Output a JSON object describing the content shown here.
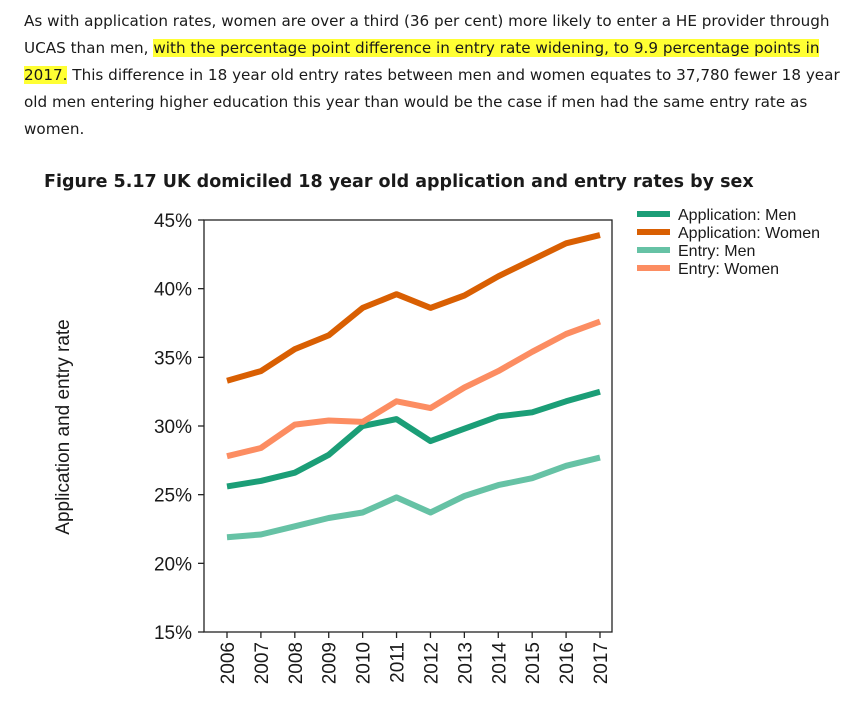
{
  "paragraph": {
    "part1": "As with application rates, women are over a third (36 per cent) more likely to enter a HE provider through UCAS than men, ",
    "highlight": "with the percentage point difference in entry rate widening, to 9.9 percentage points in 2017.",
    "part2": " This difference in 18 year old entry rates between men and women equates to 37,780 fewer 18 year old men entering higher education this year than would be the case if men had the same entry rate as women."
  },
  "colors": {
    "highlight": "#ffff33",
    "application_men": "#1b9e77",
    "application_women": "#d95f02",
    "entry_men": "#66c2a5",
    "entry_women": "#fc8d62"
  },
  "chart_data": {
    "type": "line",
    "title": "Figure 5.17 UK domiciled 18 year old application and entry rates by sex",
    "ylabel": "Application and entry rate",
    "xlabel": "",
    "ylim": [
      15,
      45
    ],
    "y_ticks": [
      15,
      20,
      25,
      30,
      35,
      40,
      45
    ],
    "y_tick_labels": [
      "15%",
      "20%",
      "25%",
      "30%",
      "35%",
      "40%",
      "45%"
    ],
    "legend_position": "top-right",
    "grid": false,
    "categories": [
      "2006",
      "2007",
      "2008",
      "2009",
      "2010",
      "2011",
      "2012",
      "2013",
      "2014",
      "2015",
      "2016",
      "2017"
    ],
    "series": [
      {
        "name": "Application: Men",
        "color": "#1b9e77",
        "values": [
          25.6,
          26.0,
          26.6,
          27.9,
          30.0,
          30.5,
          28.9,
          29.8,
          30.7,
          31.0,
          31.8,
          32.5
        ]
      },
      {
        "name": "Application: Women",
        "color": "#d95f02",
        "values": [
          33.3,
          34.0,
          35.6,
          36.6,
          38.6,
          39.6,
          38.6,
          39.5,
          40.9,
          42.1,
          43.3,
          43.9
        ]
      },
      {
        "name": "Entry: Men",
        "color": "#66c2a5",
        "values": [
          21.9,
          22.1,
          22.7,
          23.3,
          23.7,
          24.8,
          23.7,
          24.9,
          25.7,
          26.2,
          27.1,
          27.7
        ]
      },
      {
        "name": "Entry: Women",
        "color": "#fc8d62",
        "values": [
          27.8,
          28.4,
          30.1,
          30.4,
          30.3,
          31.8,
          31.3,
          32.8,
          34.0,
          35.4,
          36.7,
          37.6
        ]
      }
    ]
  }
}
